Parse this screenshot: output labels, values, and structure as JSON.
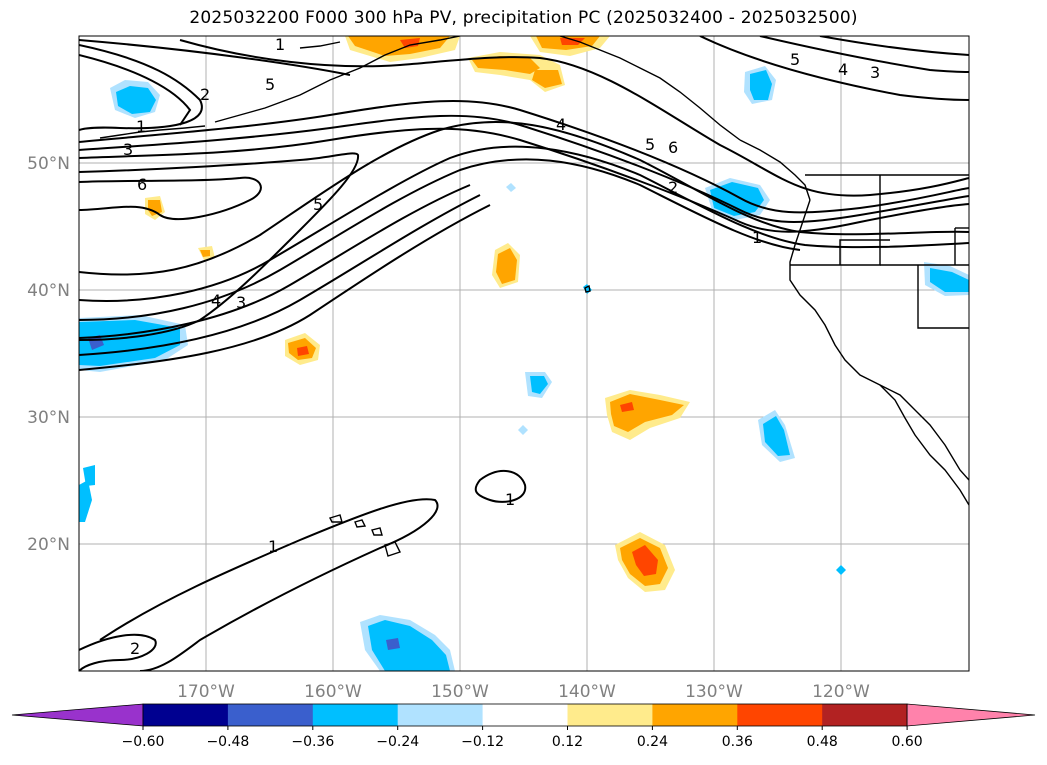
{
  "title": "2025032200 F000 300 hPa PV, precipitation PC (2025032400 - 2025032500)",
  "map": {
    "lat_labels": [
      "50°N",
      "40°N",
      "30°N",
      "20°N"
    ],
    "lon_labels": [
      "170°W",
      "160°W",
      "150°W",
      "140°W",
      "130°W",
      "120°W"
    ],
    "extent": {
      "lon_min": -180,
      "lon_max": -110,
      "lat_min": 10,
      "lat_max": 60
    }
  },
  "pv_contour_labels": [
    "1",
    "2",
    "3",
    "4",
    "5",
    "6"
  ],
  "colorbar": {
    "ticks": [
      "−0.60",
      "−0.48",
      "−0.36",
      "−0.24",
      "−0.12",
      "0.12",
      "0.24",
      "0.36",
      "0.48",
      "0.60"
    ],
    "colors": [
      "#9932cc",
      "#000090",
      "#3a5fcd",
      "#00bfff",
      "#b0e2ff",
      "#ffffff",
      "#ffeb8c",
      "#ffa500",
      "#ff4500",
      "#b22222",
      "#ff82ab"
    ]
  }
}
